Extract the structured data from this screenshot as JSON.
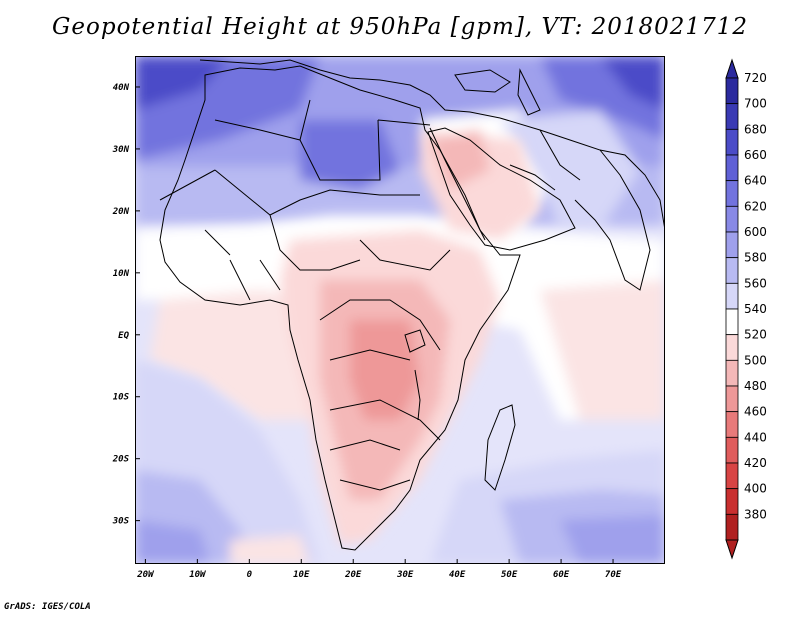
{
  "title": "Geopotential Height at 950hPa [gpm], VT: 2018021712",
  "footer": "GrADS: IGES/COLA",
  "map": {
    "lat_labels": [
      "40N",
      "30N",
      "20N",
      "10N",
      "EQ",
      "10S",
      "20S",
      "30S"
    ],
    "lat_values": [
      40,
      30,
      20,
      10,
      0,
      -10,
      -20,
      -30
    ],
    "lon_labels": [
      "20W",
      "10W",
      "0",
      "10E",
      "20E",
      "30E",
      "40E",
      "50E",
      "60E",
      "70E"
    ],
    "lon_values": [
      -20,
      -10,
      0,
      10,
      20,
      30,
      40,
      50,
      60,
      70
    ],
    "lon_range": [
      -22,
      80
    ],
    "lat_range": [
      -37,
      45
    ]
  },
  "colorbar": {
    "labels": [
      "720",
      "700",
      "680",
      "660",
      "640",
      "620",
      "600",
      "580",
      "560",
      "540",
      "520",
      "500",
      "480",
      "460",
      "440",
      "420",
      "400",
      "380"
    ],
    "colors": [
      "#2b2a9e",
      "#3a3ab4",
      "#4b4cc8",
      "#5f60d6",
      "#7273de",
      "#8889e6",
      "#9fa0ec",
      "#b8baf2",
      "#d6d7f8",
      "#ffffff",
      "#fbd9d9",
      "#f4b8b8",
      "#ee9898",
      "#e87a7a",
      "#e05c5c",
      "#d84444",
      "#c92f2f",
      "#b02020"
    ]
  }
}
